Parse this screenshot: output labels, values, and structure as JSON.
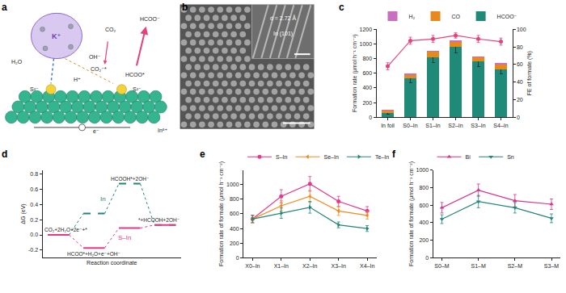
{
  "figure": {
    "a": {
      "panel": "a",
      "texts": {
        "cation": "K⁺",
        "water": "H₂O",
        "hydroxide": "OH⁻",
        "co2": "CO₂",
        "intermediate": "CO₂⁻*",
        "adsorbed": "HCOO*",
        "product": "HCOO⁻",
        "proton": "H⁺",
        "sulfide": "S²⁻",
        "metal": "Inᵟ⁺",
        "electron": "e⁻"
      }
    },
    "b": {
      "panel": "b",
      "spacing": "d = 2.72 Å",
      "plane": "In (101)"
    }
  },
  "chart_data": [
    {
      "panel": "c",
      "type": "bar",
      "stacked": true,
      "grid": false,
      "legend": "top",
      "categories": [
        "In foil",
        "S0–In",
        "S1–In",
        "S2–In",
        "S3–In",
        "S4–In"
      ],
      "ylabel": "Formation rate (μmol h⁻¹ cm⁻²)",
      "y2label": "FE of formate (%)",
      "ylim": [
        0,
        1200
      ],
      "yticks": [
        0,
        200,
        400,
        600,
        800,
        1000,
        1200
      ],
      "y2lim": [
        0,
        100
      ],
      "y2ticks": [
        0,
        20,
        40,
        60,
        80,
        100
      ],
      "series": [
        {
          "name": "HCOO⁻",
          "color": "#1f8a78",
          "values": [
            60,
            530,
            820,
            960,
            760,
            650
          ],
          "errors": [
            15,
            60,
            70,
            80,
            65,
            60
          ]
        },
        {
          "name": "CO",
          "color": "#e8891c",
          "values": [
            30,
            50,
            70,
            70,
            55,
            70
          ]
        },
        {
          "name": "H₂",
          "color": "#c86fc0",
          "values": [
            15,
            15,
            20,
            20,
            15,
            25
          ]
        },
        {
          "type": "line",
          "axis": "y2",
          "color": "#e8407a",
          "marker": "circle",
          "values": [
            58,
            87,
            89,
            93,
            89,
            86
          ],
          "errors": [
            4,
            4,
            4,
            3,
            4,
            4
          ]
        }
      ]
    },
    {
      "panel": "d",
      "type": "line",
      "grid": false,
      "tick_labels": "y",
      "xlabel": "Reaction coordinate",
      "ylabel": "ΔG (eV)",
      "ylim": [
        -0.3,
        0.85
      ],
      "yticks": [
        -0.2,
        {
          "value": 0,
          "label": "0.0"
        },
        0.2,
        0.4,
        0.6,
        0.8
      ],
      "series": [
        {
          "name": "In",
          "color": "#23857a",
          "line_style": "dash",
          "values": [
            0,
            0.28,
            0.67,
            0.13
          ]
        },
        {
          "name": "S–In",
          "color": "#e6378c",
          "line_style": "solid",
          "values": [
            0,
            -0.17,
            0.09,
            0.13
          ]
        }
      ],
      "annotations": [
        {
          "text": "CO₂+2H₂O+2e⁻+*",
          "series": "In",
          "index": 0,
          "position": "above"
        },
        {
          "text": "HCOOH*+2OH⁻",
          "series": "In",
          "index": 2,
          "position": "above"
        },
        {
          "text": "HCOO*+H₂O+e⁻+OH⁻",
          "series": "S–In",
          "index": 1,
          "position": "below"
        },
        {
          "text": "*+HCOOH+2OH⁻",
          "series": "S–In",
          "index": 3,
          "position": "above"
        }
      ]
    },
    {
      "panel": "e",
      "type": "line",
      "grid": false,
      "legend": "top",
      "categories": [
        "X0–In",
        "X1–In",
        "X2–In",
        "X3–In",
        "X4–In"
      ],
      "ylabel": "Formation rate of formate (μmol h⁻¹ cm⁻²)",
      "ylim": [
        0,
        1200
      ],
      "yticks": [
        0,
        200,
        400,
        600,
        800,
        1000
      ],
      "series": [
        {
          "name": "S–In",
          "color": "#e6378c",
          "marker": "circle",
          "values": [
            530,
            840,
            1010,
            770,
            640
          ],
          "errors": [
            50,
            90,
            100,
            70,
            60
          ]
        },
        {
          "name": "Se–In",
          "color": "#f08c1e",
          "marker": "triangle-left",
          "values": [
            530,
            710,
            840,
            640,
            580
          ],
          "errors": [
            50,
            70,
            80,
            60,
            50
          ]
        },
        {
          "name": "Te–In",
          "color": "#23857a",
          "marker": "triangle-right",
          "values": [
            530,
            610,
            690,
            450,
            400
          ],
          "errors": [
            50,
            70,
            80,
            40,
            40
          ]
        }
      ]
    },
    {
      "panel": "f",
      "type": "line",
      "grid": false,
      "legend": "top",
      "categories": [
        "S0–M",
        "S1–M",
        "S2–M",
        "S3–M"
      ],
      "ylabel": "Formation rate of formate (μmol h⁻¹ cm⁻²)",
      "ylim": [
        0,
        1000
      ],
      "yticks": [
        0,
        200,
        400,
        600,
        800,
        1000
      ],
      "series": [
        {
          "name": "Bi",
          "color": "#d6338a",
          "marker": "triangle-up",
          "values": [
            570,
            770,
            650,
            610
          ],
          "errors": [
            60,
            70,
            70,
            60
          ]
        },
        {
          "name": "Sn",
          "color": "#23857a",
          "marker": "triangle-down",
          "values": [
            440,
            640,
            570,
            450
          ],
          "errors": [
            50,
            70,
            60,
            50
          ]
        }
      ]
    }
  ]
}
